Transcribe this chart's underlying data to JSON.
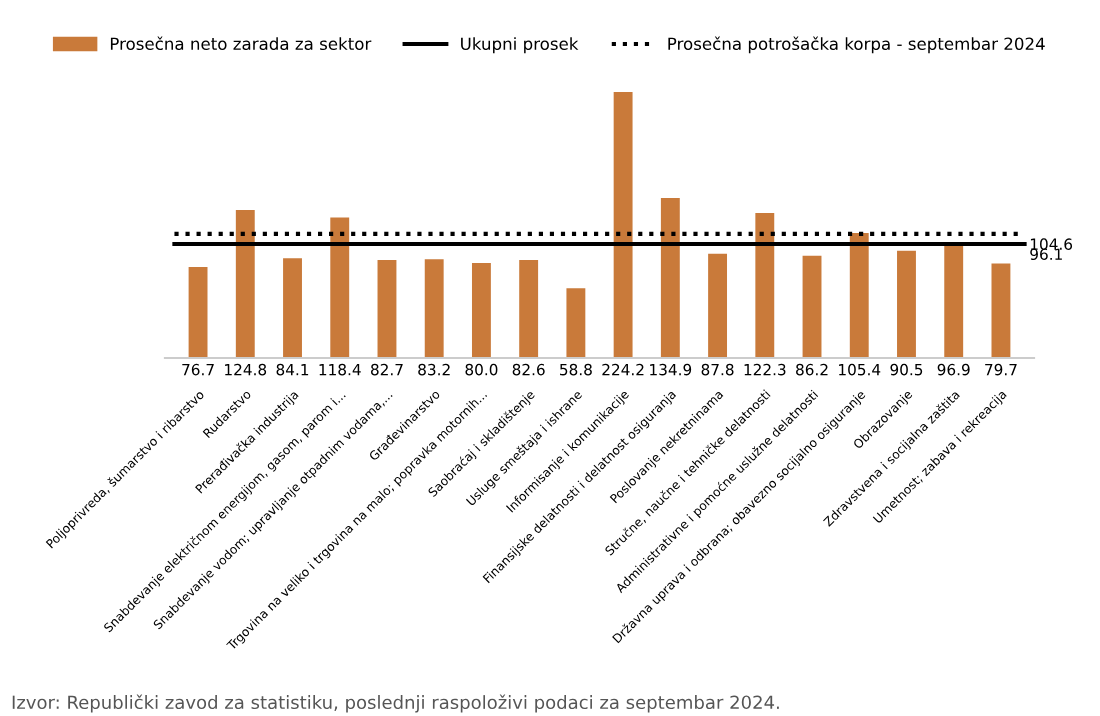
{
  "chart_data": {
    "type": "bar",
    "categories": [
      "Poljoprivreda, šumarstvo i ribarstvo",
      "Rudarstvo",
      "Prerađivačka industrija",
      "Snabdevanje električnom energijom, gasom, parom i...",
      "Snabdevanje vodom; upravljanje otpadnim vodama,...",
      "Građevinarstvo",
      "Trgovina na veliko i trgovina na malo; popravka motornih...",
      "Saobraćaj i skladištenje",
      "Usluge smeštaja i ishrane",
      "Informisanje i komunikacije",
      "Finansijske delatnosti i delatnost osiguranja",
      "Poslovanje nekretninama",
      "Stručne, naučne i tehničke delatnosti",
      "Administrativne i pomoćne uslužne delatnosti",
      "Državna uprava i odbrana; obavezno socijalno osiguranje",
      "Obrazovanje",
      "Zdravstvena i socijalna zaštita",
      "Umetnost; zabava i rekreacija"
    ],
    "series": [
      {
        "name": "Prosečna neto zarada za sektor",
        "color": "#c97a3a",
        "values": [
          76.7,
          124.8,
          84.1,
          118.4,
          82.7,
          83.2,
          80.0,
          82.6,
          58.8,
          224.2,
          134.9,
          87.8,
          122.3,
          86.2,
          105.4,
          90.5,
          96.9,
          79.7
        ],
        "value_labels": [
          "76.7",
          "124.8",
          "84.1",
          "118.4",
          "82.7",
          "83.2",
          "80.0",
          "82.6",
          "58.8",
          "224.2",
          "134.9",
          "87.8",
          "122.3",
          "86.2",
          "105.4",
          "90.5",
          "96.9",
          "79.7"
        ]
      }
    ],
    "ref_lines": [
      {
        "axis": "y",
        "value": 96.1,
        "label": "Ukupni prosek",
        "color": "#000000",
        "line_style": "solid"
      },
      {
        "axis": "y",
        "value": 104.6,
        "label": "Prosečna potrošačka korpa - septembar 2024",
        "color": "#000000",
        "line_style": "dotted"
      }
    ],
    "legend": "top",
    "grid": false,
    "annotations": [
      {
        "text": "104.6",
        "x": "Umetnost; zabava i rekreacija",
        "y": 104.6
      },
      {
        "text": "96.1",
        "x": "Umetnost; zabava i rekreacija",
        "y": 96.1
      },
      "Izvor: Republički zavod za statistiku, poslednji raspoloživi podaci za septembar 2024."
    ]
  }
}
